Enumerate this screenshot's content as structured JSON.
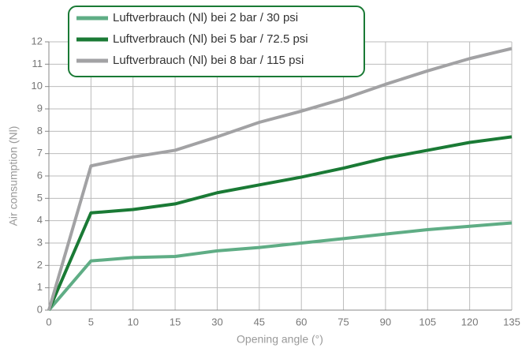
{
  "chart_data": {
    "type": "line",
    "x_label": "Opening angle (°)",
    "y_label": "Air consumption (Nl)",
    "categories": [
      "0",
      "5",
      "10",
      "15",
      "30",
      "45",
      "60",
      "75",
      "90",
      "105",
      "120",
      "135"
    ],
    "series": [
      {
        "name": "Luftverbrauch (Nl) bei 2 bar / 30 psi",
        "color": "#5fad85",
        "values": [
          0,
          2.2,
          2.35,
          2.4,
          2.65,
          2.8,
          3.0,
          3.2,
          3.4,
          3.6,
          3.75,
          3.9
        ]
      },
      {
        "name": "Luftverbrauch (Nl) bei 5 bar / 72.5 psi",
        "color": "#1a7a35",
        "values": [
          0,
          4.35,
          4.5,
          4.75,
          5.25,
          5.6,
          5.95,
          6.35,
          6.8,
          7.15,
          7.5,
          7.75
        ]
      },
      {
        "name": "Luftverbrauch (Nl) bei 8 bar / 115 psi",
        "color": "#a2a2a4",
        "values": [
          0,
          6.45,
          6.85,
          7.15,
          7.75,
          8.4,
          8.9,
          9.45,
          10.1,
          10.7,
          11.25,
          11.7
        ]
      }
    ],
    "ylim": [
      0,
      12
    ],
    "yticks": [
      0,
      1,
      2,
      3,
      4,
      5,
      6,
      7,
      8,
      9,
      10,
      11,
      12
    ],
    "grid": true,
    "legend": "top-left"
  }
}
